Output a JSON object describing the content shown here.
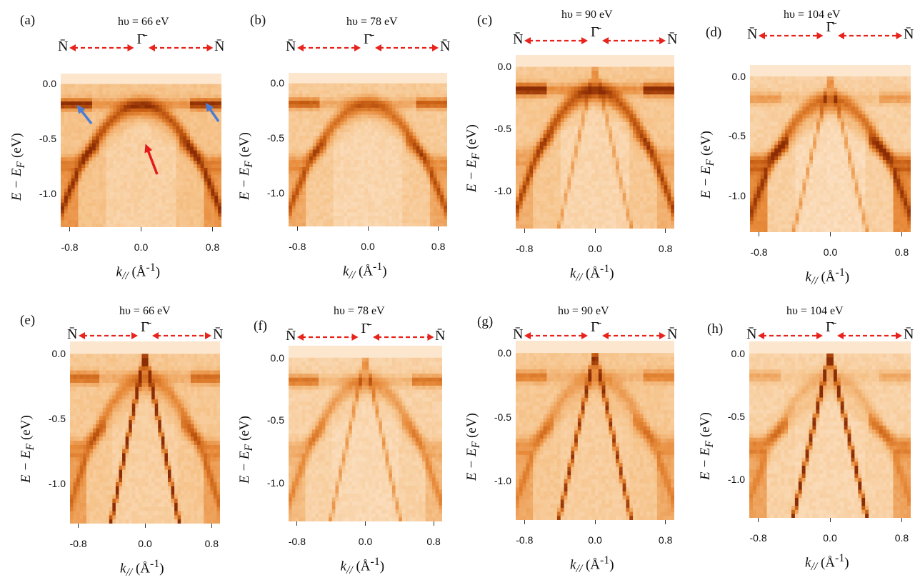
{
  "figure": {
    "panels": [
      {
        "id": "a",
        "label": "(a)",
        "photon_energy": "hυ = 66 eV"
      },
      {
        "id": "b",
        "label": "(b)",
        "photon_energy": "hυ = 78 eV"
      },
      {
        "id": "c",
        "label": "(c)",
        "photon_energy": "hυ = 90 eV"
      },
      {
        "id": "d",
        "label": "(d)",
        "photon_energy": "hυ = 104 eV"
      },
      {
        "id": "e",
        "label": "(e)",
        "photon_energy": "hυ = 66 eV"
      },
      {
        "id": "f",
        "label": "(f)",
        "photon_energy": "hυ = 78 eV"
      },
      {
        "id": "g",
        "label": "(g)",
        "photon_energy": "hυ = 90 eV"
      },
      {
        "id": "h",
        "label": "(h)",
        "photon_energy": "hυ = 104 eV"
      }
    ],
    "symbols": {
      "left": "N̄",
      "center": "Γ̄",
      "right": "N̄"
    },
    "y_ticks": [
      "0.0",
      "-0.5",
      "-1.0"
    ],
    "x_ticks": [
      "-0.8",
      "0.0",
      "0.8"
    ],
    "y_axis_label": "E − E",
    "y_axis_sub": "F",
    "y_axis_unit": " (eV)",
    "x_axis_label": "k",
    "x_axis_sub": "//",
    "x_axis_unit": " (Å",
    "x_axis_sup": "-1",
    "x_axis_close": ")",
    "colors": {
      "arrow_dashed": "#e8231c",
      "arrow_blue": "#4a7ed6",
      "arrow_red": "#e31b1b",
      "intensity_low": "#fff5ea",
      "intensity_high": "#b23a00"
    },
    "ranges": {
      "k": [
        -0.9,
        0.9
      ],
      "energy": [
        -1.3,
        0.1
      ]
    }
  }
}
